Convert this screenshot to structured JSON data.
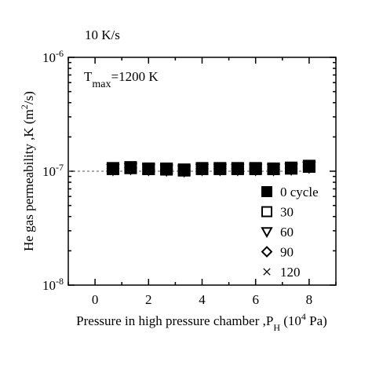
{
  "chart_data": {
    "type": "scatter",
    "annotations": [
      {
        "text": "10 K/s"
      },
      {
        "text": "T"
      },
      {
        "text": "max"
      },
      {
        "text": "=1200 K"
      }
    ],
    "xlabel": [
      {
        "text": "Pressure in high pressure chamber ,P"
      },
      {
        "text": "H",
        "shift": "sub"
      },
      {
        "text": " (10"
      },
      {
        "text": "4",
        "shift": "sup"
      },
      {
        "text": " Pa)"
      }
    ],
    "ylabel": [
      {
        "text": "He gas permeability ,K (m"
      },
      {
        "text": "2",
        "shift": "sup"
      },
      {
        "text": "/s)"
      }
    ],
    "xlim": [
      -1,
      9
    ],
    "xticks": [
      0,
      2,
      4,
      6,
      8
    ],
    "xminor_ticks": [
      -1,
      1,
      3,
      5,
      7,
      9
    ],
    "ylim": [
      1e-08,
      1e-06
    ],
    "log_y": true,
    "yticks": [
      {
        "value": 1e-08,
        "label": "10",
        "sup": "-8"
      },
      {
        "value": 1e-07,
        "label": "10",
        "sup": "-7"
      },
      {
        "value": 1e-06,
        "label": "10",
        "sup": "-6"
      }
    ],
    "yminor_ticks": [
      2e-08,
      3e-08,
      4e-08,
      5e-08,
      6e-08,
      7e-08,
      8e-08,
      9e-08,
      2e-07,
      3e-07,
      4e-07,
      5e-07,
      6e-07,
      7e-07,
      8e-07,
      9e-07
    ],
    "reference_line": 1e-07,
    "x": [
      0.67,
      1.33,
      2,
      2.67,
      3.33,
      4,
      4.67,
      5.33,
      6,
      6.67,
      7.33,
      8
    ],
    "series": [
      {
        "name": "0 cycle",
        "marker": "filled-square",
        "color": "#000000",
        "values": [
          1.05e-07,
          1.07e-07,
          1.05e-07,
          1.04e-07,
          1.02e-07,
          1.05e-07,
          1.05e-07,
          1.05e-07,
          1.05e-07,
          1.05e-07,
          1.06e-07,
          1.1e-07
        ]
      },
      {
        "name": "30",
        "marker": "open-square",
        "color": "#000000",
        "values": [
          1.06e-07,
          1.08e-07,
          1.05e-07,
          1.05e-07,
          1.03e-07,
          1.06e-07,
          1.06e-07,
          1.06e-07,
          1.06e-07,
          1.05e-07,
          1.07e-07,
          1.11e-07
        ]
      },
      {
        "name": "60",
        "marker": "triangle-down",
        "color": "#000000",
        "values": [
          1.04e-07,
          1.06e-07,
          1.04e-07,
          1.03e-07,
          1.01e-07,
          1.04e-07,
          1.04e-07,
          1.04e-07,
          1.04e-07,
          1.04e-07,
          1.05e-07,
          1.09e-07
        ]
      },
      {
        "name": "90",
        "marker": "diamond",
        "color": "#000000",
        "values": [
          1.05e-07,
          1.07e-07,
          1.04e-07,
          1.04e-07,
          1.02e-07,
          1.05e-07,
          1.05e-07,
          1.05e-07,
          1.05e-07,
          1.04e-07,
          1.06e-07,
          1.1e-07
        ]
      },
      {
        "name": "120",
        "marker": "cross",
        "color": "#000000",
        "values": [
          1.03e-07,
          1.06e-07,
          1.03e-07,
          1.03e-07,
          1e-07,
          1.04e-07,
          1.04e-07,
          1.04e-07,
          1.03e-07,
          1.03e-07,
          1.05e-07,
          1.08e-07
        ]
      }
    ]
  }
}
